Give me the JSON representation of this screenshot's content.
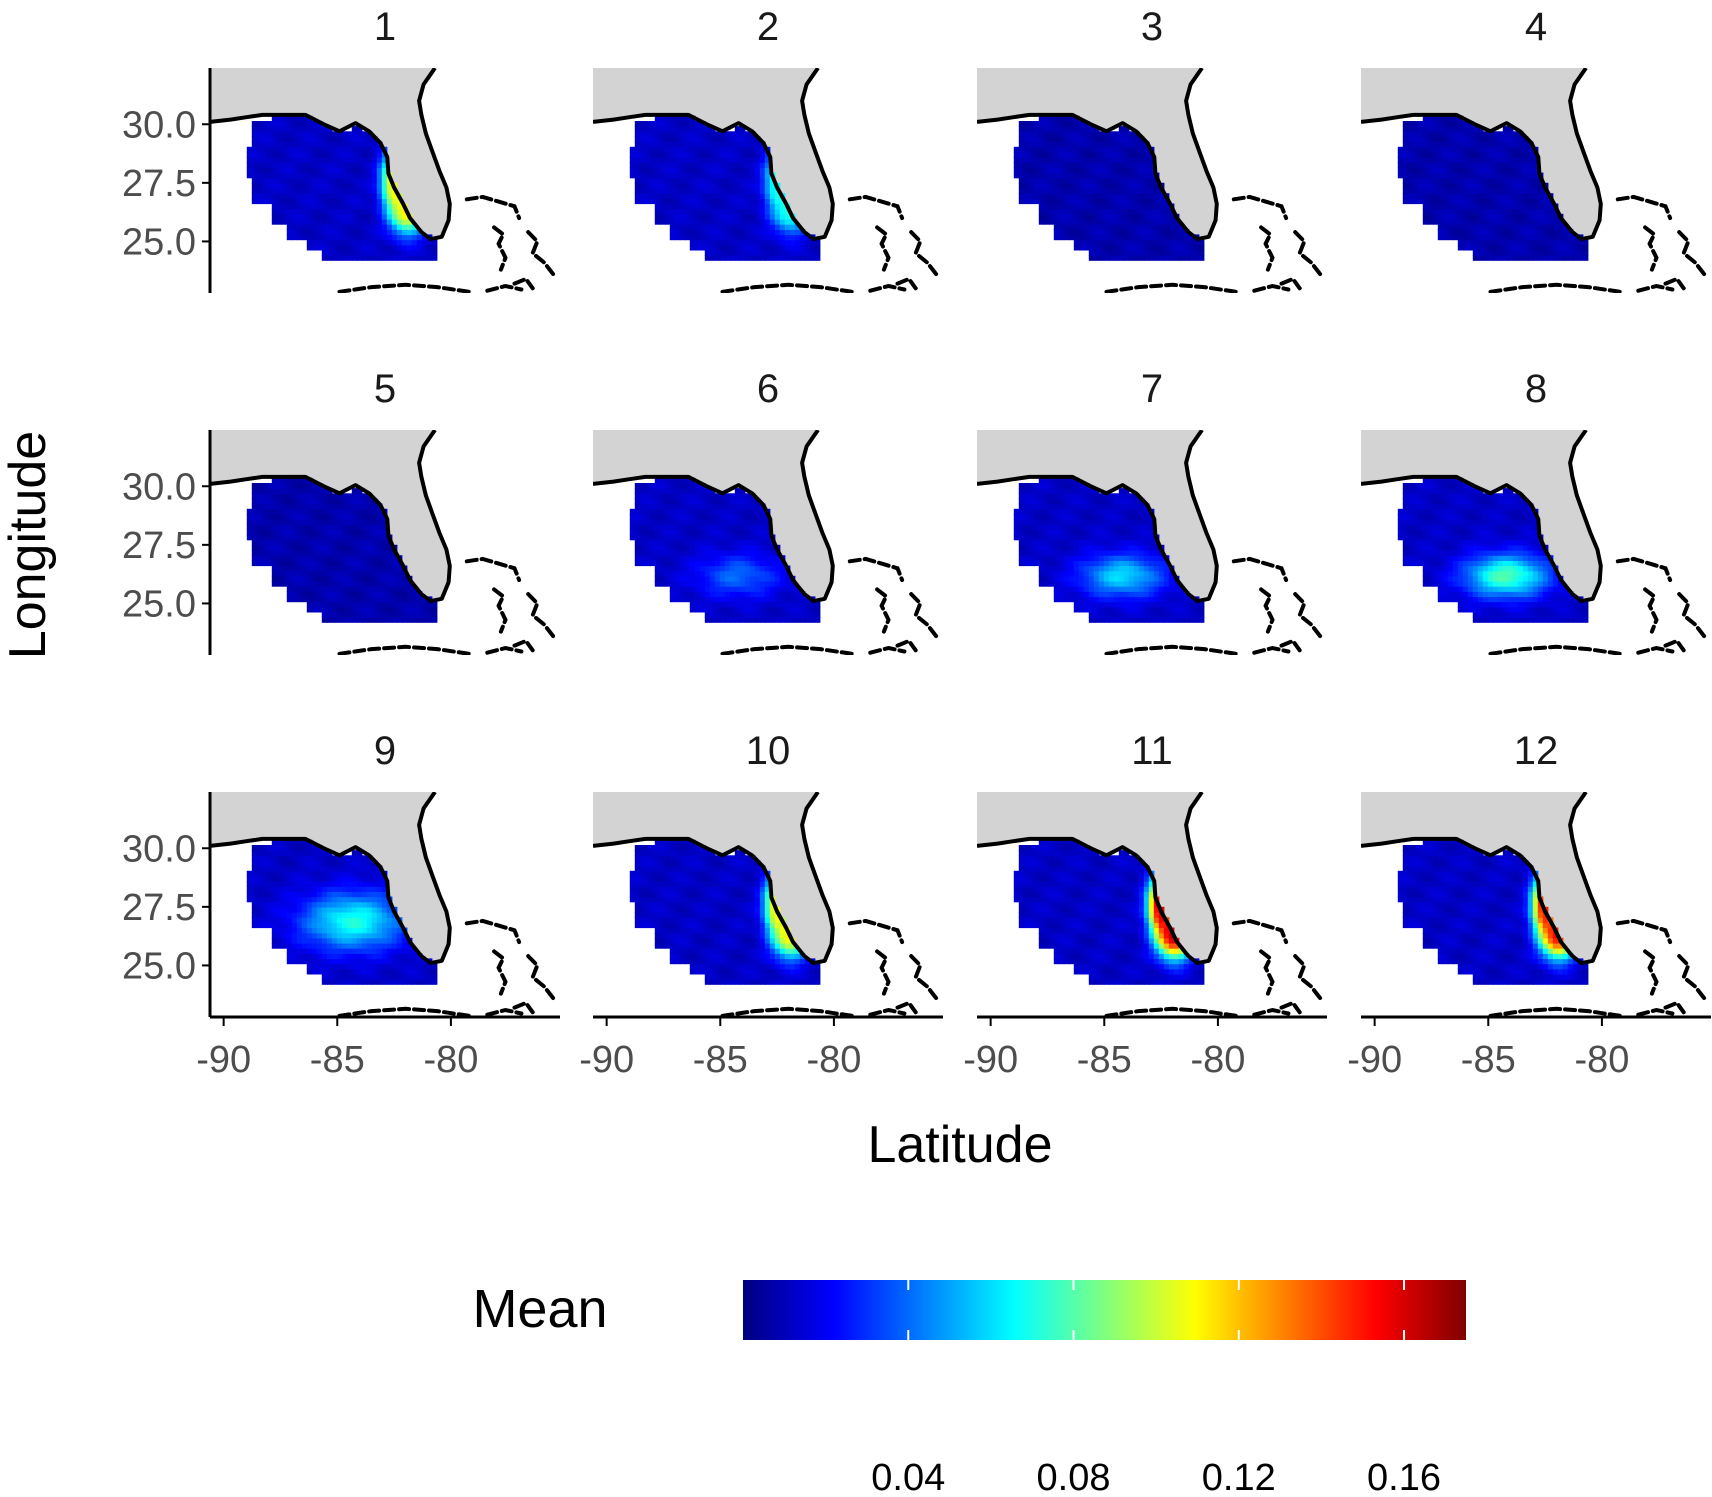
{
  "chart_data": {
    "type": "heatmap",
    "description_text": "",
    "xlabel": "Latitude",
    "ylabel": "Longitude",
    "facets": [
      {
        "label": "1",
        "hotspot": "southwest-coast",
        "peak": 0.11
      },
      {
        "label": "2",
        "hotspot": "southwest-coast",
        "peak": 0.07
      },
      {
        "label": "3",
        "hotspot": "none",
        "peak": 0.03
      },
      {
        "label": "4",
        "hotspot": "none",
        "peak": 0.03
      },
      {
        "label": "5",
        "hotspot": "none",
        "peak": 0.02
      },
      {
        "label": "6",
        "hotspot": "offshore-south",
        "peak": 0.04
      },
      {
        "label": "7",
        "hotspot": "offshore-south",
        "peak": 0.06
      },
      {
        "label": "8",
        "hotspot": "offshore-south",
        "peak": 0.08
      },
      {
        "label": "9",
        "hotspot": "offshore-central",
        "peak": 0.07
      },
      {
        "label": "10",
        "hotspot": "southwest-coast",
        "peak": 0.11
      },
      {
        "label": "11",
        "hotspot": "southwest-coast",
        "peak": 0.16
      },
      {
        "label": "12",
        "hotspot": "southwest-coast",
        "peak": 0.15
      }
    ],
    "x_ticks": [
      "-90",
      "-85",
      "-80"
    ],
    "x_tick_values": [
      -90,
      -85,
      -80
    ],
    "y_ticks": [
      "30.0",
      "27.5",
      "25.0"
    ],
    "y_tick_values": [
      30.0,
      27.5,
      25.0
    ],
    "xlim": [
      -90.6,
      -75.2
    ],
    "ylim": [
      22.8,
      32.4
    ],
    "legend": {
      "title": "Mean",
      "position": "bottom",
      "ticks": [
        "0.04",
        "0.08",
        "0.12",
        "0.16"
      ],
      "tick_values": [
        0.04,
        0.08,
        0.12,
        0.16
      ],
      "range": [
        0.0,
        0.175
      ],
      "colormap": [
        "#00007f",
        "#0000ff",
        "#007fff",
        "#00ffff",
        "#7fff7f",
        "#ffff00",
        "#ff7f00",
        "#ff0000",
        "#7f0000"
      ]
    },
    "colors": {
      "land": "#d3d3d3",
      "coastline": "#000000",
      "axis": "#000000",
      "tick_text": "#4d4d4d"
    }
  }
}
